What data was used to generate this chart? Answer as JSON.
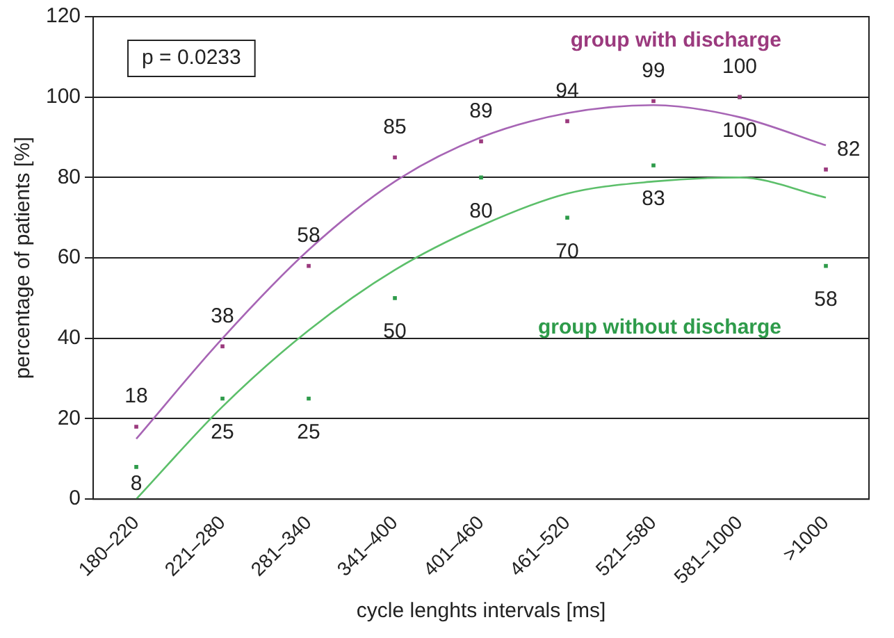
{
  "chart_data": {
    "type": "scatter",
    "xlabel": "cycle lenghts intervals [ms]",
    "ylabel": "percentage of patients [%]",
    "categories": [
      "180–220",
      "221–280",
      "281–340",
      "341–400",
      "401–460",
      "461–520",
      "521–580",
      "581–1000",
      ">1000"
    ],
    "ylim": [
      0,
      120
    ],
    "yticks": [
      0,
      20,
      40,
      60,
      80,
      100,
      120
    ],
    "grid": "y",
    "annotations": [
      "p = 0.0233"
    ],
    "series": [
      {
        "name": "group with discharge",
        "color": "#9b3a7e",
        "marker": "square",
        "values": [
          18,
          38,
          58,
          85,
          89,
          94,
          99,
          100,
          82
        ],
        "value_labels": [
          "18",
          "38",
          "58",
          "85",
          "89",
          "94",
          "99",
          "100",
          "82"
        ]
      },
      {
        "name": "group without discharge",
        "color": "#2e9b4a",
        "marker": "square",
        "values": [
          8,
          25,
          25,
          50,
          80,
          70,
          83,
          100,
          58
        ],
        "value_labels": [
          "8",
          "25",
          "25",
          "50",
          "80",
          "70",
          "83",
          "100",
          "58"
        ]
      },
      {
        "type": "line",
        "color": "#a765b5",
        "marker": "none",
        "values": [
          15,
          40,
          62,
          79,
          90,
          96,
          98,
          95,
          88
        ]
      },
      {
        "type": "line",
        "color": "#5cbf6a",
        "marker": "none",
        "values": [
          0,
          23,
          42,
          57,
          68,
          76,
          79,
          80,
          75
        ]
      }
    ]
  }
}
